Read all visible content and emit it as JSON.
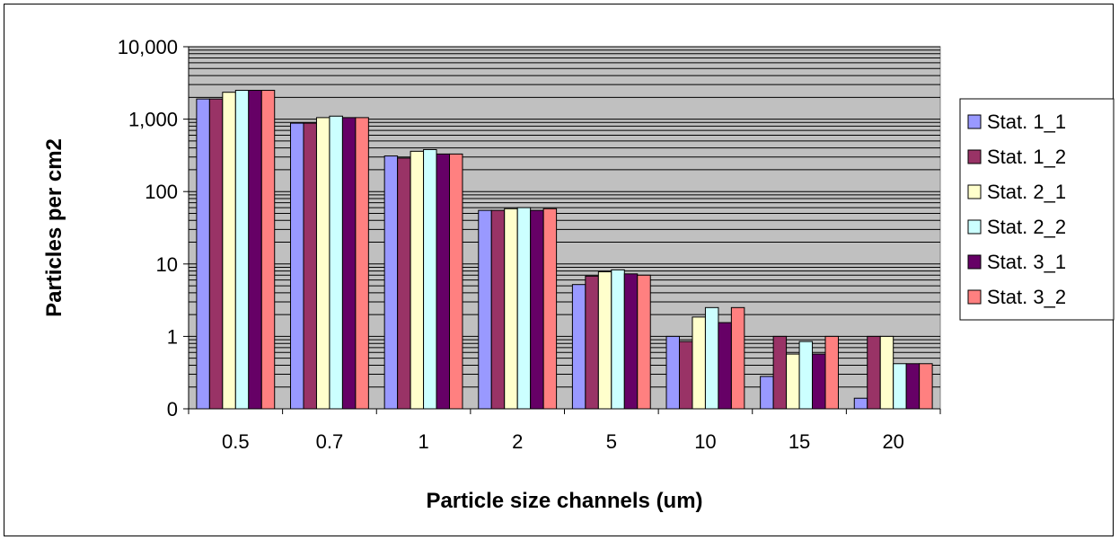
{
  "chart_data": {
    "type": "bar",
    "title": "",
    "xlabel": "Particle size channels (um)",
    "ylabel": "Particles per cm2",
    "y_scale": "log",
    "ylim": [
      0.1,
      10000
    ],
    "y_ticks": [
      0.1,
      1,
      10,
      100,
      1000,
      10000
    ],
    "y_tick_labels": [
      "0",
      "1",
      "10",
      "100",
      "1,000",
      "10,000"
    ],
    "grid": true,
    "legend_position": "right",
    "categories": [
      "0.5",
      "0.7",
      "1",
      "2",
      "5",
      "10",
      "15",
      "20"
    ],
    "series": [
      {
        "name": "Stat. 1_1",
        "color": "#9999FF",
        "values": [
          1900,
          880,
          310,
          55,
          5.2,
          1.0,
          0.28,
          0.14
        ]
      },
      {
        "name": "Stat. 1_2",
        "color": "#993366",
        "values": [
          1900,
          880,
          290,
          55,
          6.8,
          0.85,
          1.0,
          1.0
        ]
      },
      {
        "name": "Stat. 2_1",
        "color": "#FFFFCC",
        "values": [
          2350,
          1050,
          360,
          58,
          7.8,
          1.85,
          0.57,
          1.0
        ]
      },
      {
        "name": "Stat. 2_2",
        "color": "#CCFFFF",
        "values": [
          2500,
          1100,
          380,
          60,
          8.3,
          2.5,
          0.85,
          0.42
        ]
      },
      {
        "name": "Stat. 3_1",
        "color": "#660066",
        "values": [
          2500,
          1050,
          330,
          55,
          7.3,
          1.55,
          0.57,
          0.42
        ]
      },
      {
        "name": "Stat. 3_2",
        "color": "#FF8080",
        "values": [
          2500,
          1050,
          330,
          58,
          7.0,
          2.5,
          1.0,
          0.42
        ]
      }
    ]
  }
}
